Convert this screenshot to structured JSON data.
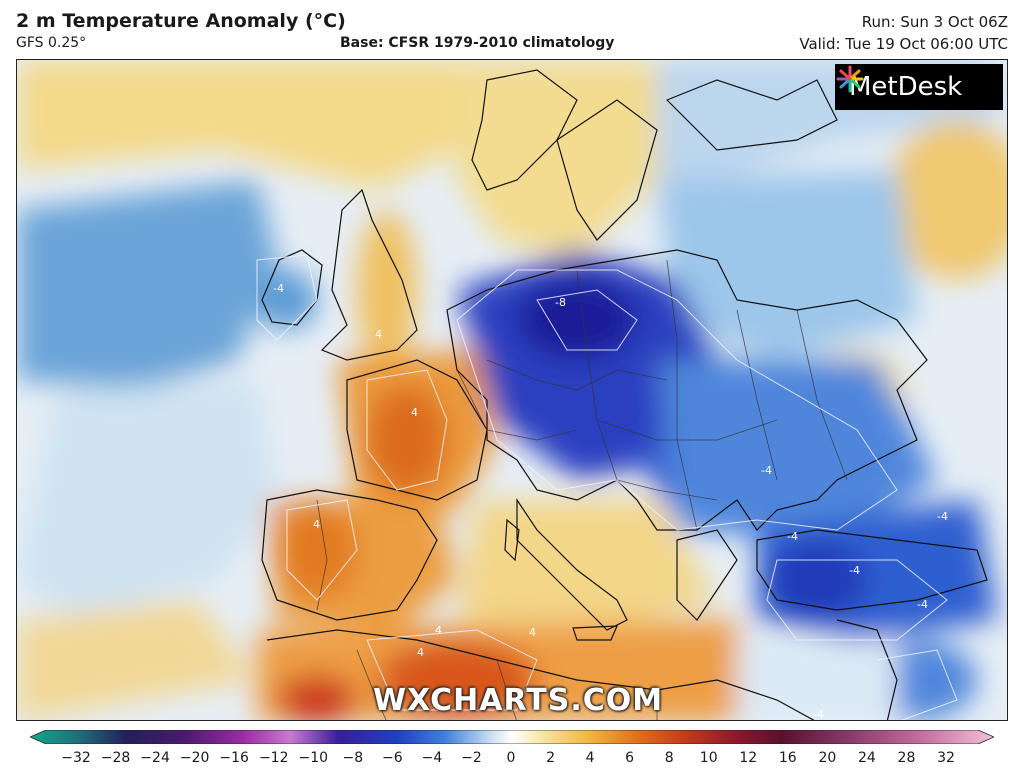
{
  "header": {
    "title": "2 m Temperature Anomaly (°C)",
    "model": "GFS 0.25°",
    "base": "Base: CFSR 1979-2010 climatology",
    "run": "Run: Sun 3 Oct 06Z",
    "valid": "Valid: Tue 19 Oct 06:00 UTC"
  },
  "logo": {
    "brand": "MetDesk",
    "icon": "starburst-logo-icon"
  },
  "watermark": "WXCHARTS.COM",
  "colorbar": {
    "ticks": [
      "−32",
      "−28",
      "−24",
      "−20",
      "−16",
      "−12",
      "−10",
      "−8",
      "−6",
      "−4",
      "−2",
      "0",
      "2",
      "4",
      "6",
      "8",
      "10",
      "12",
      "16",
      "20",
      "24",
      "28",
      "32"
    ],
    "colors": [
      "#14a88a",
      "#1f6f7a",
      "#241f5a",
      "#4a1a6e",
      "#7a1c8e",
      "#b84ab4",
      "#c87ad0",
      "#3a1d9a",
      "#1f3fc2",
      "#3f7fdc",
      "#9cc7ec",
      "#eef4fa",
      "#f8e6a8",
      "#f2b640",
      "#e0701c",
      "#c43a1a",
      "#8e1a2a",
      "#5a1030",
      "#8a3a6a",
      "#c06a9a",
      "#d888b4",
      "#e8a0c8",
      "#f2c0da"
    ]
  },
  "map_labels": [
    "-4",
    "-8",
    "-4",
    "4",
    "4",
    "4",
    "4",
    "4",
    "-4",
    "-4",
    "-4",
    "-4",
    "4",
    "-4"
  ]
}
